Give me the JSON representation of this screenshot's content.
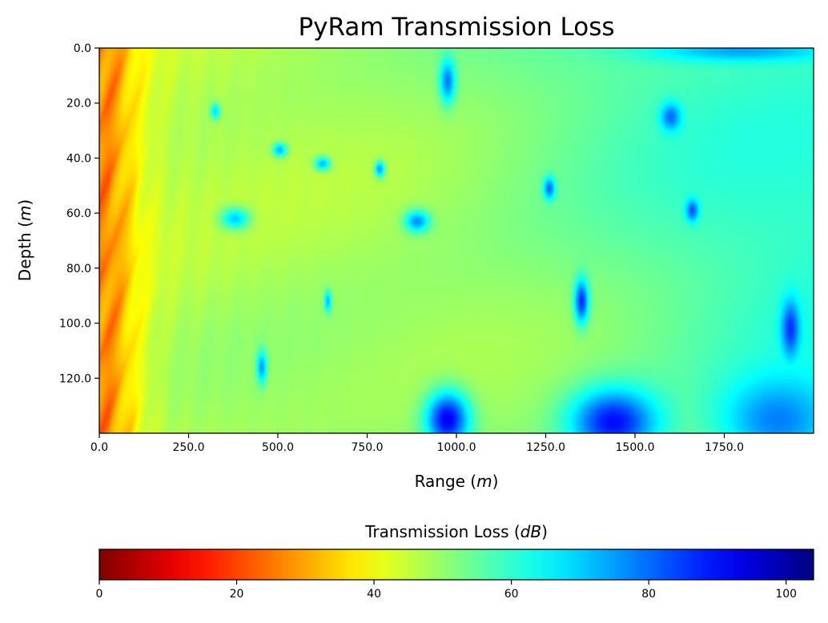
{
  "chart_data": {
    "type": "heatmap",
    "title": "PyRam Transmission Loss",
    "xlabel": {
      "text": "Range (",
      "symbol": "m",
      "suffix": ")"
    },
    "ylabel": {
      "text": "Depth (",
      "symbol": "m",
      "suffix": ")"
    },
    "xlim": [
      0,
      2000
    ],
    "ylim": [
      140,
      0
    ],
    "x_ticks": [
      0,
      250,
      500,
      750,
      1000,
      1250,
      1500,
      1750
    ],
    "x_tick_labels": [
      "0.0",
      "250.0",
      "500.0",
      "750.0",
      "1000.0",
      "1250.0",
      "1500.0",
      "1750.0"
    ],
    "y_ticks": [
      0,
      20,
      40,
      60,
      80,
      100,
      120
    ],
    "y_tick_labels": [
      "0.0",
      "20.0",
      "40.0",
      "60.0",
      "80.0",
      "100.0",
      "120.0"
    ],
    "colormap": "jet",
    "colorbar": {
      "title": {
        "text": "Transmission Loss (",
        "symbol": "dB",
        "suffix": ")"
      },
      "range": [
        0,
        104
      ],
      "orientation": "horizontal",
      "placement": "bottom",
      "ticks": [
        0,
        20,
        40,
        60,
        80,
        100
      ],
      "tick_labels": [
        "0",
        "20",
        "40",
        "60",
        "80",
        "100"
      ]
    },
    "field": {
      "description_values_db": "approximate transmission loss values read from the colour map",
      "background_near_source_db": 22,
      "background_mid_db": 45,
      "background_far_db": 58,
      "nulls": [
        {
          "range": 975,
          "depth": 12,
          "tl": 78,
          "sr": 22,
          "sd": 8
        },
        {
          "range": 1600,
          "depth": 25,
          "tl": 80,
          "sr": 28,
          "sd": 5
        },
        {
          "range": 325,
          "depth": 23,
          "tl": 68,
          "sr": 14,
          "sd": 3
        },
        {
          "range": 505,
          "depth": 37,
          "tl": 72,
          "sr": 20,
          "sd": 2.5
        },
        {
          "range": 625,
          "depth": 42,
          "tl": 72,
          "sr": 22,
          "sd": 2.5
        },
        {
          "range": 785,
          "depth": 44,
          "tl": 75,
          "sr": 14,
          "sd": 3
        },
        {
          "range": 1260,
          "depth": 51,
          "tl": 80,
          "sr": 16,
          "sd": 4
        },
        {
          "range": 1660,
          "depth": 59,
          "tl": 82,
          "sr": 18,
          "sd": 4
        },
        {
          "range": 890,
          "depth": 63,
          "tl": 76,
          "sr": 35,
          "sd": 4
        },
        {
          "range": 380,
          "depth": 62,
          "tl": 70,
          "sr": 40,
          "sd": 4
        },
        {
          "range": 640,
          "depth": 92,
          "tl": 72,
          "sr": 10,
          "sd": 4
        },
        {
          "range": 1350,
          "depth": 92,
          "tl": 86,
          "sr": 20,
          "sd": 8
        },
        {
          "range": 1935,
          "depth": 102,
          "tl": 86,
          "sr": 25,
          "sd": 10
        },
        {
          "range": 455,
          "depth": 116,
          "tl": 75,
          "sr": 14,
          "sd": 6
        },
        {
          "range": 975,
          "depth": 135,
          "tl": 92,
          "sr": 60,
          "sd": 10
        },
        {
          "range": 1440,
          "depth": 136,
          "tl": 90,
          "sr": 120,
          "sd": 12
        },
        {
          "range": 1900,
          "depth": 135,
          "tl": 78,
          "sr": 150,
          "sd": 15
        },
        {
          "range": 1800,
          "depth": 1,
          "tl": 74,
          "sr": 250,
          "sd": 4
        }
      ]
    }
  }
}
